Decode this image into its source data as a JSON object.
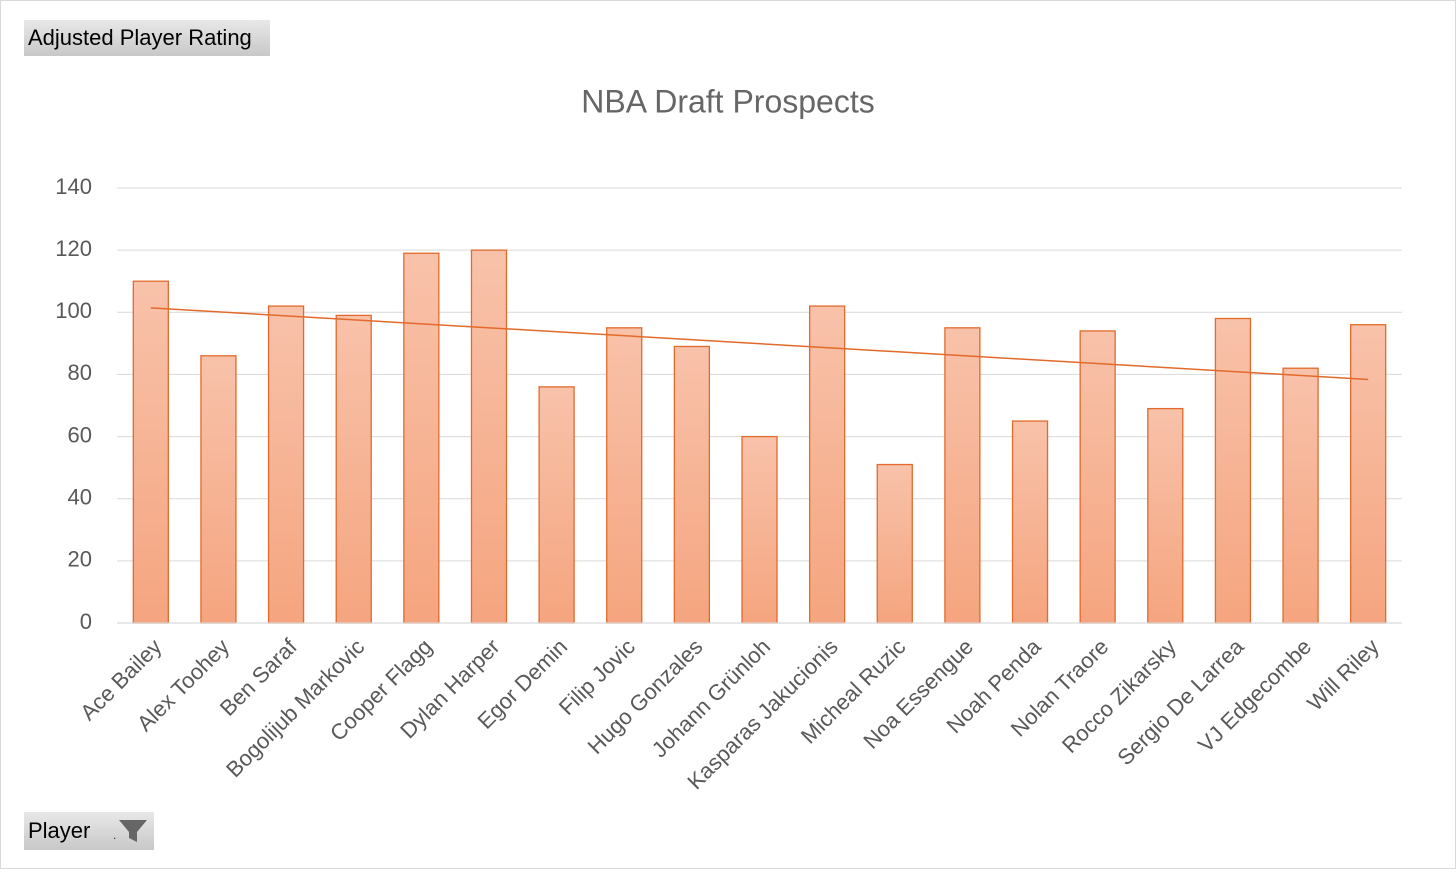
{
  "chart_data": {
    "type": "bar",
    "title": "NBA Draft Prospects",
    "x_label": "Player",
    "categories": [
      "Ace Bailey",
      "Alex Toohey",
      "Ben Saraf",
      "Bogolijub Markovic",
      "Cooper Flagg",
      "Dylan Harper",
      "Egor Demin",
      "Filip Jovic",
      "Hugo Gonzales",
      "Johann Grünloh",
      "Kasparas Jakucionis",
      "Micheal Ruzic",
      "Noa Essengue",
      "Noah Penda",
      "Nolan Traore",
      "Rocco Zikarsky",
      "Sergio De Larrea",
      "VJ Edgecombe",
      "Will Riley"
    ],
    "series": [
      {
        "name": "Adjusted Player Rating",
        "color": "#e26a2c",
        "values": [
          110,
          86,
          102,
          99,
          119,
          120,
          76,
          95,
          89,
          60,
          102,
          51,
          95,
          65,
          94,
          69,
          98,
          82,
          96
        ]
      }
    ],
    "ylim": [
      0,
      140
    ],
    "yticks": [
      0,
      20,
      40,
      60,
      80,
      100,
      120,
      140
    ],
    "grid": true,
    "trendline": true
  }
}
